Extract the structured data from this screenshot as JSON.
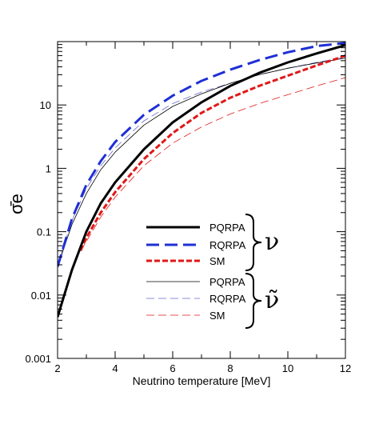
{
  "chart_data": {
    "type": "line",
    "title": "",
    "xlabel": "Neutrino temperature [MeV]",
    "ylabel": "σ̄e",
    "xlim": [
      2,
      12
    ],
    "ylim": [
      0.001,
      100
    ],
    "yscale": "log",
    "x_ticks": [
      2,
      4,
      6,
      8,
      10,
      12
    ],
    "x_tick_labels": [
      "2",
      "4",
      "6",
      "8",
      "10",
      "12"
    ],
    "y_ticks": [
      0.001,
      0.01,
      0.1,
      1,
      10
    ],
    "y_tick_labels": [
      "0.001",
      "0.01",
      "0.1",
      "1",
      "10"
    ],
    "grid": false,
    "legend_position": "center-right",
    "groups": [
      {
        "symbol": "ν",
        "series": [
          0,
          1,
          2
        ]
      },
      {
        "symbol": "ν̃",
        "series": [
          3,
          4,
          5
        ]
      }
    ],
    "series": [
      {
        "name": "PQRPA",
        "color": "#000000",
        "style": "solid",
        "weight": "thick",
        "x": [
          2,
          2.5,
          3,
          3.5,
          4,
          5,
          6,
          7,
          8,
          9,
          10,
          11,
          12
        ],
        "y": [
          0.0045,
          0.025,
          0.1,
          0.28,
          0.6,
          2.0,
          5.3,
          11,
          20,
          32,
          47,
          65,
          88
        ]
      },
      {
        "name": "RQRPA",
        "color": "#1f2fd6",
        "style": "dashed",
        "weight": "thick",
        "x": [
          2,
          2.5,
          3,
          3.5,
          4,
          5,
          6,
          7,
          8,
          9,
          10,
          11,
          12
        ],
        "y": [
          0.028,
          0.16,
          0.55,
          1.3,
          2.6,
          7.0,
          14,
          24,
          36,
          51,
          68,
          85,
          95
        ]
      },
      {
        "name": "SM",
        "color": "#e01818",
        "style": "dotted",
        "weight": "thick",
        "x": [
          2.8,
          3,
          3.5,
          4,
          5,
          6,
          7,
          8,
          9,
          10,
          11,
          12
        ],
        "y": [
          0.05,
          0.08,
          0.2,
          0.42,
          1.4,
          3.6,
          7.5,
          13,
          20,
          29,
          42,
          60
        ]
      },
      {
        "name": "PQRPA",
        "color": "#000000",
        "style": "solid",
        "weight": "thin",
        "x": [
          2,
          2.5,
          3,
          3.5,
          4,
          5,
          6,
          7,
          8,
          9,
          10,
          11,
          12
        ],
        "y": [
          0.028,
          0.13,
          0.4,
          0.95,
          1.8,
          4.8,
          9.5,
          15,
          22,
          30,
          38,
          46,
          55
        ]
      },
      {
        "name": "RQRPA",
        "color": "#6666cc",
        "style": "dashed",
        "weight": "thin",
        "x": [
          2,
          2.5,
          3,
          3.5,
          4,
          5,
          6,
          7,
          8,
          9,
          10,
          11,
          12
        ],
        "y": [
          0.03,
          0.15,
          0.48,
          1.1,
          2.1,
          5.6,
          10.5,
          16,
          22,
          30,
          38,
          47,
          57
        ]
      },
      {
        "name": "SM",
        "color": "#e01818",
        "style": "dashed",
        "weight": "thin",
        "x": [
          2.8,
          3,
          3.5,
          4,
          5,
          6,
          7,
          8,
          9,
          10,
          11,
          12
        ],
        "y": [
          0.05,
          0.07,
          0.17,
          0.35,
          1.1,
          2.5,
          4.5,
          7.2,
          10.5,
          14.5,
          20,
          27
        ]
      }
    ]
  }
}
